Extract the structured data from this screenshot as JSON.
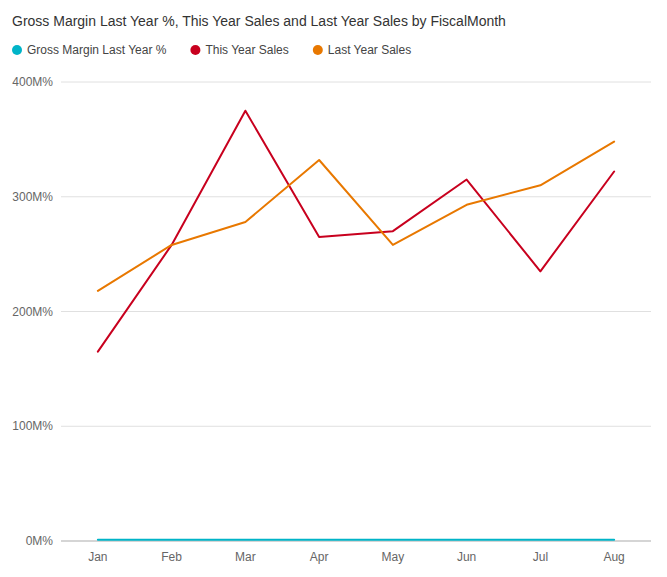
{
  "chart_data": {
    "type": "line",
    "title": "Gross Margin Last Year %, This Year Sales and Last Year Sales by FiscalMonth",
    "categories": [
      "Jan",
      "Feb",
      "Mar",
      "Apr",
      "May",
      "Jun",
      "Jul",
      "Aug"
    ],
    "series": [
      {
        "name": "Gross Margin Last Year %",
        "color": "#00B4C8",
        "values": [
          1,
          1,
          1,
          1,
          1,
          1,
          1,
          1
        ]
      },
      {
        "name": "This Year Sales",
        "color": "#C8001E",
        "values": [
          165,
          258,
          375,
          265,
          270,
          315,
          235,
          322
        ]
      },
      {
        "name": "Last Year Sales",
        "color": "#E87800",
        "values": [
          218,
          258,
          278,
          332,
          258,
          293,
          310,
          348
        ]
      }
    ],
    "ylim": [
      0,
      400
    ],
    "yticks": [
      {
        "value": 0,
        "label": "0M%"
      },
      {
        "value": 100,
        "label": "100M%"
      },
      {
        "value": 200,
        "label": "200M%"
      },
      {
        "value": 300,
        "label": "300M%"
      },
      {
        "value": 400,
        "label": "400M%"
      }
    ],
    "grid": true,
    "legend": "top"
  }
}
